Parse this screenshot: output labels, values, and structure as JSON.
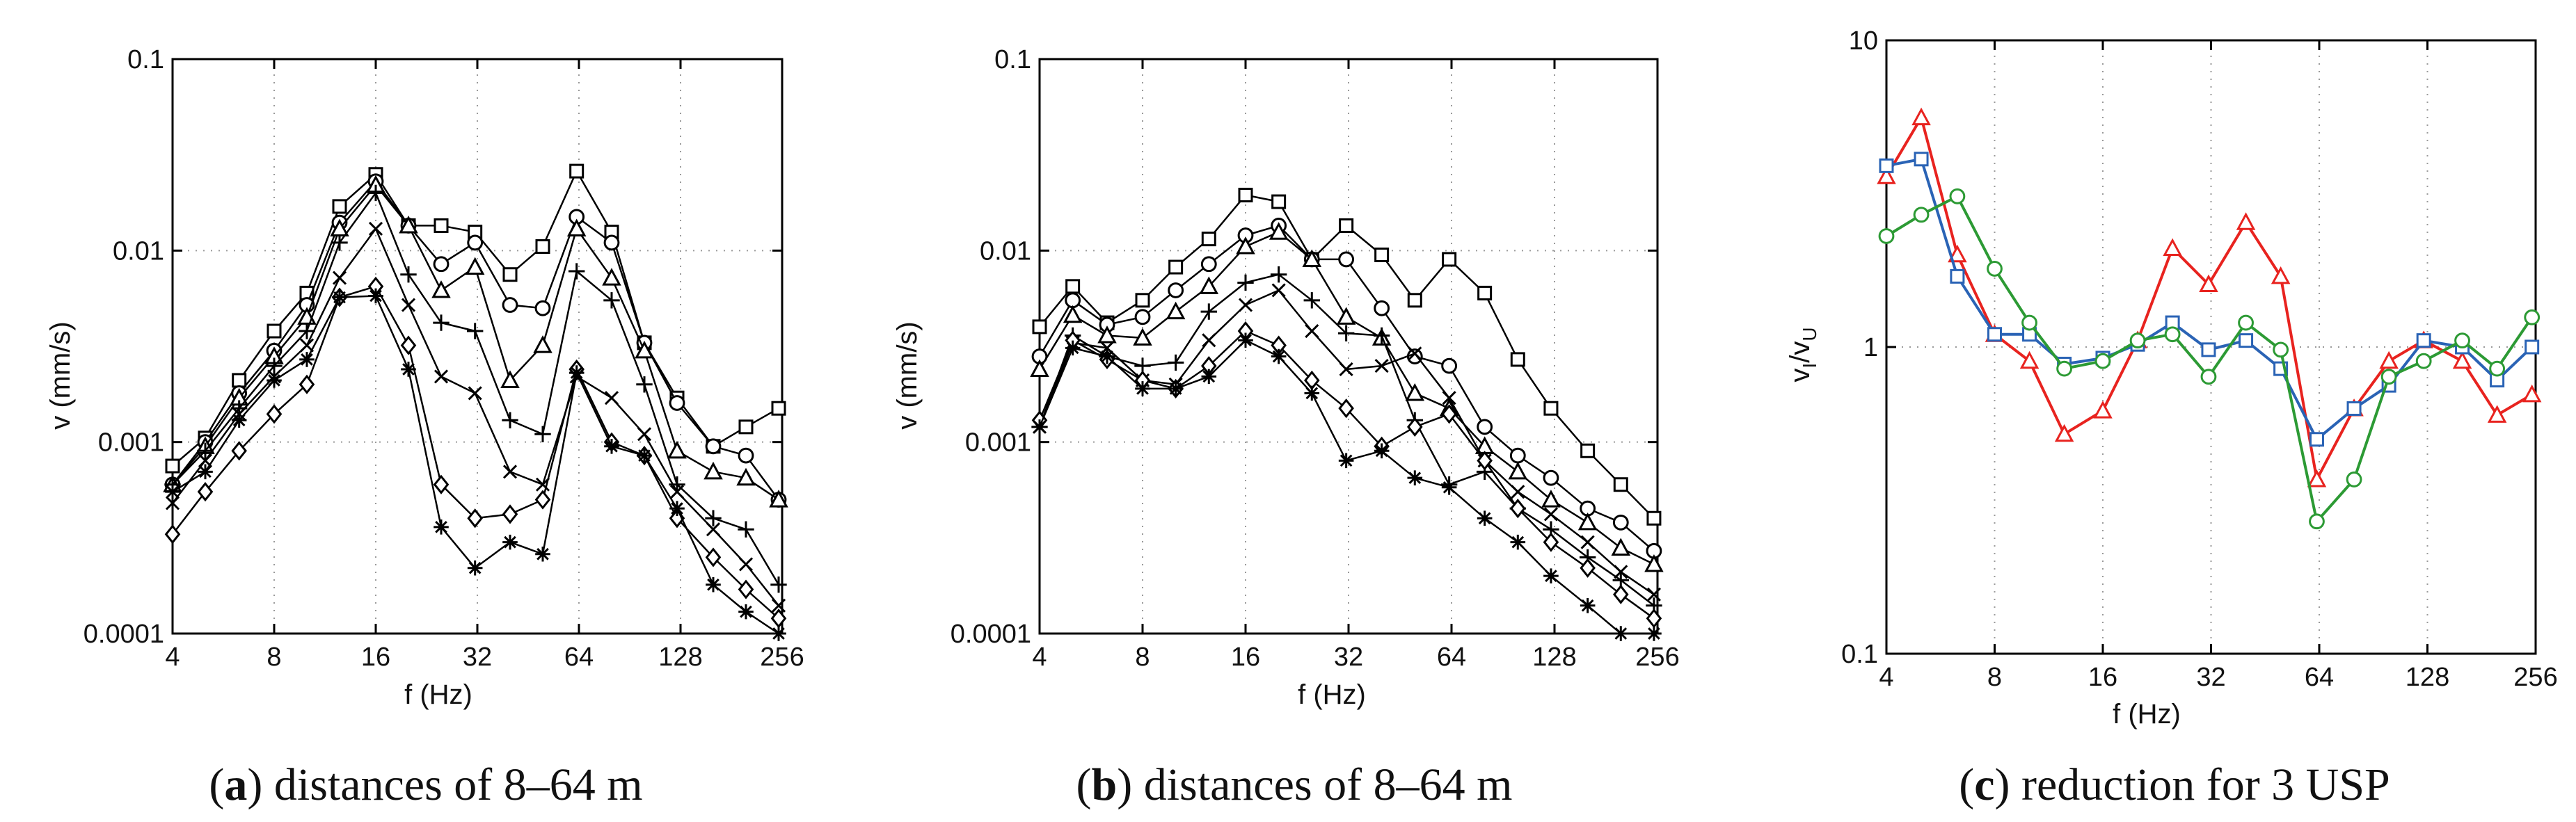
{
  "chart_data": [
    {
      "type": "line",
      "panel_id": "a",
      "caption": {
        "open": "(",
        "letter": "a",
        "close": ")",
        "text": "distances of 8–64 m"
      },
      "xlabel": "f (Hz)",
      "ylabel": "v (mm/s)",
      "xscale": "log2",
      "yscale": "log10",
      "xlim": [
        4,
        256
      ],
      "ylim": [
        0.0001,
        0.1
      ],
      "x_ticks": [
        4,
        8,
        16,
        32,
        64,
        128,
        256
      ],
      "x_tick_labels": [
        "4",
        "8",
        "16",
        "32",
        "64",
        "128",
        "256"
      ],
      "y_ticks": [
        0.0001,
        0.001,
        0.01,
        0.1
      ],
      "y_tick_labels": [
        "0.0001",
        "0.001",
        "0.01",
        "0.1"
      ],
      "grid": true,
      "x": [
        4,
        5,
        6.3,
        8,
        10,
        12.5,
        16,
        20,
        25,
        31.5,
        40,
        50,
        63,
        80,
        100,
        125,
        160,
        200,
        250
      ],
      "series": [
        {
          "name": "square",
          "marker": "square",
          "color": "#000000",
          "values": [
            0.00075,
            0.00105,
            0.0021,
            0.0038,
            0.006,
            0.017,
            0.025,
            0.0135,
            0.0135,
            0.0125,
            0.0075,
            0.0105,
            0.026,
            0.0125,
            0.0033,
            0.0017,
            0.00095,
            0.0012,
            0.0015
          ]
        },
        {
          "name": "circle",
          "marker": "circle",
          "color": "#000000",
          "values": [
            0.0006,
            0.001,
            0.0018,
            0.003,
            0.0052,
            0.014,
            0.023,
            0.0135,
            0.0085,
            0.011,
            0.0052,
            0.005,
            0.015,
            0.011,
            0.0033,
            0.0016,
            0.00095,
            0.00085,
            0.0005
          ]
        },
        {
          "name": "triangle",
          "marker": "triangle",
          "color": "#000000",
          "values": [
            0.0006,
            0.00095,
            0.0017,
            0.0028,
            0.0045,
            0.013,
            0.022,
            0.0135,
            0.0062,
            0.0082,
            0.0021,
            0.0032,
            0.013,
            0.0072,
            0.003,
            0.0009,
            0.0007,
            0.00065,
            0.0005
          ]
        },
        {
          "name": "plus",
          "marker": "plus",
          "color": "#000000",
          "values": [
            0.0006,
            0.0009,
            0.0015,
            0.0025,
            0.0038,
            0.011,
            0.02,
            0.0075,
            0.0042,
            0.0038,
            0.0013,
            0.0011,
            0.0078,
            0.0055,
            0.002,
            0.0006,
            0.0004,
            0.00035,
            0.00018
          ]
        },
        {
          "name": "cross",
          "marker": "x",
          "color": "#000000",
          "values": [
            0.00048,
            0.0008,
            0.0014,
            0.0022,
            0.0032,
            0.0072,
            0.013,
            0.0052,
            0.0022,
            0.0018,
            0.0007,
            0.0006,
            0.0022,
            0.0017,
            0.0011,
            0.00055,
            0.00035,
            0.00023,
            0.00014
          ]
        },
        {
          "name": "diamond",
          "marker": "diamond",
          "color": "#000000",
          "values": [
            0.00033,
            0.00055,
            0.0009,
            0.0014,
            0.002,
            0.0057,
            0.0065,
            0.0032,
            0.0006,
            0.0004,
            0.00042,
            0.0005,
            0.0024,
            0.001,
            0.00085,
            0.0004,
            0.00025,
            0.00017,
            0.00012
          ]
        },
        {
          "name": "asterisk",
          "marker": "asterisk",
          "color": "#000000",
          "values": [
            0.00055,
            0.0007,
            0.0013,
            0.0021,
            0.0027,
            0.0057,
            0.0058,
            0.0024,
            0.00036,
            0.00022,
            0.0003,
            0.00026,
            0.0023,
            0.00095,
            0.00085,
            0.00045,
            0.00018,
            0.00013,
            0.0001
          ]
        }
      ]
    },
    {
      "type": "line",
      "panel_id": "b",
      "caption": {
        "open": "(",
        "letter": "b",
        "close": ")",
        "text": "distances of 8–64 m"
      },
      "xlabel": "f (Hz)",
      "ylabel": "v (mm/s)",
      "xscale": "log2",
      "yscale": "log10",
      "xlim": [
        4,
        256
      ],
      "ylim": [
        0.0001,
        0.1
      ],
      "x_ticks": [
        4,
        8,
        16,
        32,
        64,
        128,
        256
      ],
      "x_tick_labels": [
        "4",
        "8",
        "16",
        "32",
        "64",
        "128",
        "256"
      ],
      "y_ticks": [
        0.0001,
        0.001,
        0.01,
        0.1
      ],
      "y_tick_labels": [
        "0.0001",
        "0.001",
        "0.01",
        "0.1"
      ],
      "grid": true,
      "x": [
        4,
        5,
        6.3,
        8,
        10,
        12.5,
        16,
        20,
        25,
        31.5,
        40,
        50,
        63,
        80,
        100,
        125,
        160,
        200,
        250
      ],
      "series": [
        {
          "name": "square",
          "marker": "square",
          "color": "#000000",
          "values": [
            0.004,
            0.0065,
            0.0042,
            0.0055,
            0.0082,
            0.0115,
            0.0195,
            0.018,
            0.009,
            0.0135,
            0.0095,
            0.0055,
            0.009,
            0.006,
            0.0027,
            0.0015,
            0.0009,
            0.0006,
            0.0004
          ]
        },
        {
          "name": "circle",
          "marker": "circle",
          "color": "#000000",
          "values": [
            0.0028,
            0.0055,
            0.0041,
            0.0045,
            0.0062,
            0.0085,
            0.012,
            0.0135,
            0.009,
            0.009,
            0.005,
            0.0028,
            0.0025,
            0.0012,
            0.00085,
            0.00065,
            0.00045,
            0.00038,
            0.00027
          ]
        },
        {
          "name": "triangle",
          "marker": "triangle",
          "color": "#000000",
          "values": [
            0.0024,
            0.0046,
            0.0036,
            0.0035,
            0.0048,
            0.0065,
            0.0105,
            0.0125,
            0.009,
            0.0045,
            0.0035,
            0.0018,
            0.0015,
            0.00095,
            0.0007,
            0.0005,
            0.00038,
            0.00028,
            0.00023
          ]
        },
        {
          "name": "plus",
          "marker": "plus",
          "color": "#000000",
          "values": [
            0.0012,
            0.0036,
            0.0028,
            0.0025,
            0.0026,
            0.0048,
            0.0068,
            0.0075,
            0.0055,
            0.0037,
            0.0036,
            0.0013,
            0.0006,
            0.0007,
            0.00045,
            0.00035,
            0.00025,
            0.00019,
            0.00014
          ]
        },
        {
          "name": "cross",
          "marker": "x",
          "color": "#000000",
          "values": [
            0.0012,
            0.0033,
            0.0031,
            0.0021,
            0.002,
            0.0034,
            0.0052,
            0.0062,
            0.0038,
            0.0024,
            0.0025,
            0.0029,
            0.0017,
            0.0008,
            0.00055,
            0.00042,
            0.0003,
            0.00021,
            0.00016
          ]
        },
        {
          "name": "diamond",
          "marker": "diamond",
          "color": "#000000",
          "values": [
            0.0013,
            0.0034,
            0.0027,
            0.0021,
            0.0019,
            0.0025,
            0.0038,
            0.0032,
            0.0021,
            0.0015,
            0.00095,
            0.0012,
            0.0014,
            0.0008,
            0.00045,
            0.0003,
            0.00022,
            0.00016,
            0.00012
          ]
        },
        {
          "name": "asterisk",
          "marker": "asterisk",
          "color": "#000000",
          "values": [
            0.0012,
            0.0031,
            0.0028,
            0.0019,
            0.0019,
            0.0022,
            0.0034,
            0.0028,
            0.0018,
            0.0008,
            0.0009,
            0.00065,
            0.00058,
            0.0004,
            0.0003,
            0.0002,
            0.00014,
            0.0001,
            0.0001
          ]
        }
      ]
    },
    {
      "type": "line",
      "panel_id": "c",
      "caption": {
        "open": "(",
        "letter": "c",
        "close": ")",
        "text": "reduction for 3 USP"
      },
      "xlabel": "f (Hz)",
      "ylabel": "v_I/v_U",
      "ylabel_main": "v",
      "ylabel_sub1": "I",
      "ylabel_sep": "/v",
      "ylabel_sub2": "U",
      "xscale": "log2",
      "yscale": "log10",
      "xlim": [
        4,
        256
      ],
      "ylim": [
        0.1,
        10
      ],
      "x_ticks": [
        4,
        8,
        16,
        32,
        64,
        128,
        256
      ],
      "x_tick_labels": [
        "4",
        "8",
        "16",
        "32",
        "64",
        "128",
        "256"
      ],
      "y_ticks": [
        0.1,
        1,
        10
      ],
      "y_tick_labels": [
        "0.1",
        "1",
        "10"
      ],
      "grid": true,
      "x": [
        4,
        5,
        6.3,
        8,
        10,
        12.5,
        16,
        20,
        25,
        31.5,
        40,
        50,
        63,
        80,
        100,
        125,
        160,
        200,
        250
      ],
      "series": [
        {
          "name": "red-triangle",
          "marker": "triangle",
          "color": "#e8231f",
          "values": [
            3.6,
            5.6,
            2.0,
            1.1,
            0.9,
            0.52,
            0.62,
            1.05,
            2.1,
            1.6,
            2.55,
            1.7,
            0.37,
            0.63,
            0.9,
            1.05,
            0.9,
            0.6,
            0.7
          ]
        },
        {
          "name": "blue-square",
          "marker": "square",
          "color": "#2a63b5",
          "values": [
            3.9,
            4.1,
            1.7,
            1.1,
            1.1,
            0.88,
            0.92,
            1.02,
            1.2,
            0.98,
            1.05,
            0.85,
            0.5,
            0.63,
            0.75,
            1.05,
            1.0,
            0.78,
            1.0
          ]
        },
        {
          "name": "green-circle",
          "marker": "circle",
          "color": "#2c9a34",
          "values": [
            2.3,
            2.7,
            3.1,
            1.8,
            1.2,
            0.85,
            0.9,
            1.05,
            1.1,
            0.8,
            1.2,
            0.98,
            0.27,
            0.37,
            0.8,
            0.9,
            1.05,
            0.85,
            1.25
          ]
        }
      ]
    }
  ]
}
